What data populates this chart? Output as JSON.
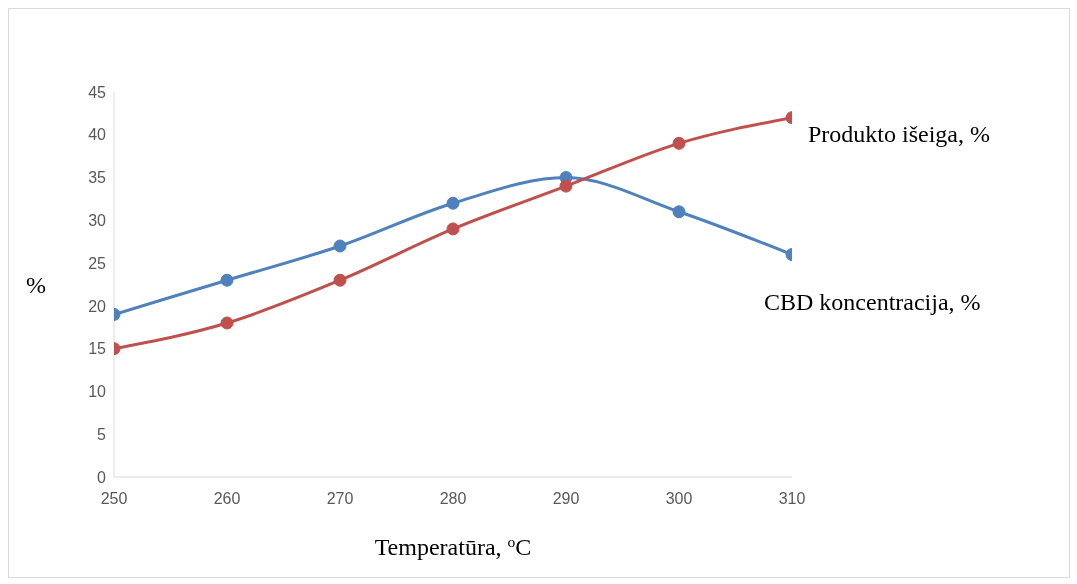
{
  "chart_data": {
    "type": "line",
    "xlabel": "Temperatūra, $^{o}$C",
    "ylabel": "%",
    "x": [
      250,
      260,
      270,
      280,
      290,
      300,
      310
    ],
    "xlim": [
      250,
      310
    ],
    "xticks": [
      250,
      260,
      270,
      280,
      290,
      300,
      310
    ],
    "ylim": [
      0,
      45
    ],
    "yticks": [
      0,
      5,
      10,
      15,
      20,
      25,
      30,
      35,
      40,
      45
    ],
    "series": [
      {
        "name": "CBD koncentracija, %",
        "color": "#4f81bd",
        "values": [
          19,
          23,
          27,
          32,
          35,
          31,
          26
        ]
      },
      {
        "name": "Produkto išeiga, %",
        "color": "#c0504d",
        "values": [
          15,
          18,
          23,
          29,
          34,
          39,
          42
        ]
      }
    ],
    "marker": "circle",
    "line_style": "solid",
    "grid": false,
    "legend": false
  }
}
